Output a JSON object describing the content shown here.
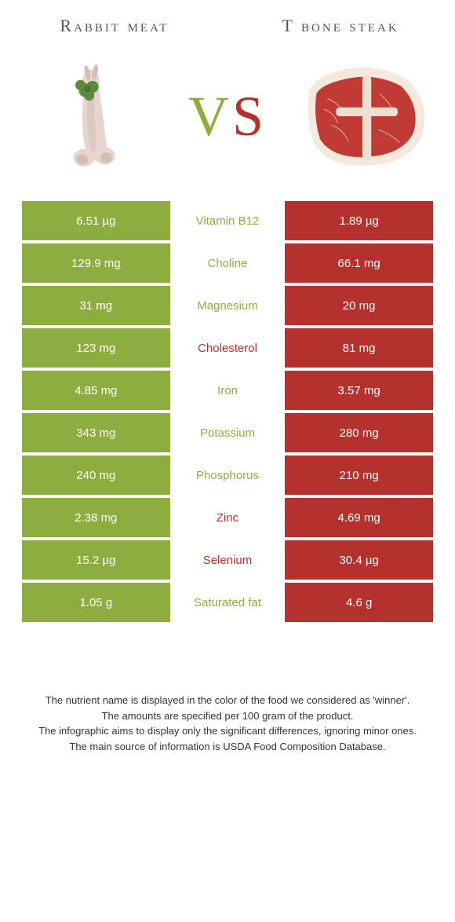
{
  "leftTitle": "Rabbit meat",
  "rightTitle": "T bone steak",
  "vsV": "V",
  "vsS": "S",
  "colors": {
    "green": "#8ead3f",
    "red": "#b4312e",
    "labelGreen": "#8ead3f",
    "labelRed": "#b4312e"
  },
  "rows": [
    {
      "left": "6.51 µg",
      "label": "Vitamin B12",
      "right": "1.89 µg",
      "winner": "left"
    },
    {
      "left": "129.9 mg",
      "label": "Choline",
      "right": "66.1 mg",
      "winner": "left"
    },
    {
      "left": "31 mg",
      "label": "Magnesium",
      "right": "20 mg",
      "winner": "left"
    },
    {
      "left": "123 mg",
      "label": "Cholesterol",
      "right": "81 mg",
      "winner": "right"
    },
    {
      "left": "4.85 mg",
      "label": "Iron",
      "right": "3.57 mg",
      "winner": "left"
    },
    {
      "left": "343 mg",
      "label": "Potassium",
      "right": "280 mg",
      "winner": "left"
    },
    {
      "left": "240 mg",
      "label": "Phosphorus",
      "right": "210 mg",
      "winner": "left"
    },
    {
      "left": "2.38 mg",
      "label": "Zinc",
      "right": "4.69 mg",
      "winner": "right"
    },
    {
      "left": "15.2 µg",
      "label": "Selenium",
      "right": "30.4 µg",
      "winner": "right"
    },
    {
      "left": "1.05 g",
      "label": "Saturated fat",
      "right": "4.6 g",
      "winner": "left"
    }
  ],
  "footnotes": [
    "The nutrient name is displayed in the color of the food we considered as 'winner'.",
    "The amounts are specified per 100 gram of the product.",
    "The infographic aims to display only the significant differences, ignoring minor ones.",
    "The main source of information is USDA Food Composition Database."
  ]
}
